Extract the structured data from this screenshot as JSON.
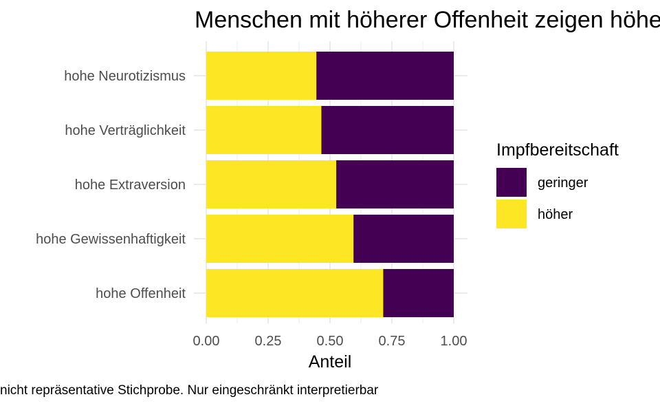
{
  "chart_data": {
    "type": "bar",
    "orientation": "horizontal",
    "stacked": true,
    "title": "Menschen mit höherer Offenheit zeigen höhere Impfbereitschaft",
    "xlabel": "Anteil",
    "ylabel": "",
    "caption": "nicht repräsentative Stichprobe. Nur eingeschränkt interpretierbar",
    "xlim": [
      0,
      1
    ],
    "xticks": [
      "0.00",
      "0.25",
      "0.50",
      "0.75",
      "1.00"
    ],
    "categories": [
      "hohe Neurotizismus",
      "hohe Verträglichkeit",
      "hohe Extraversion",
      "hohe Gewissenhaftigkeit",
      "hohe Offenheit"
    ],
    "series": [
      {
        "name": "höher",
        "color": "#FDE725",
        "values": [
          0.445,
          0.465,
          0.525,
          0.595,
          0.715
        ]
      },
      {
        "name": "geringer",
        "color": "#440154",
        "values": [
          0.555,
          0.535,
          0.475,
          0.405,
          0.285
        ]
      }
    ],
    "legend": {
      "title": "Impfbereitschaft",
      "position": "right",
      "entries": [
        {
          "label": "geringer",
          "color": "#440154"
        },
        {
          "label": "höher",
          "color": "#FDE725"
        }
      ]
    },
    "grid": true
  }
}
